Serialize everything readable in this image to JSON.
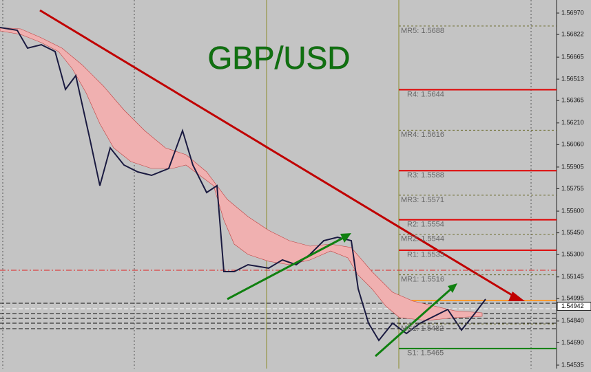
{
  "title": "GBP/USD",
  "price_axis": {
    "range": [
      1.54535,
      1.5697
    ],
    "ticks": [
      {
        "value": 1.5697,
        "label": "1.56970"
      },
      {
        "value": 1.56822,
        "label": "1.56822"
      },
      {
        "value": 1.56665,
        "label": "1.56665"
      },
      {
        "value": 1.56513,
        "label": "1.56513"
      },
      {
        "value": 1.56365,
        "label": "1.56365"
      },
      {
        "value": 1.5621,
        "label": "1.56210"
      },
      {
        "value": 1.5606,
        "label": "1.56060"
      },
      {
        "value": 1.55905,
        "label": "1.55905"
      },
      {
        "value": 1.55755,
        "label": "1.55755"
      },
      {
        "value": 1.556,
        "label": "1.55600"
      },
      {
        "value": 1.5545,
        "label": "1.55450"
      },
      {
        "value": 1.553,
        "label": "1.55300"
      },
      {
        "value": 1.55145,
        "label": "1.55145"
      },
      {
        "value": 1.54995,
        "label": "1.54995"
      },
      {
        "value": 1.5484,
        "label": "1.54840"
      },
      {
        "value": 1.5469,
        "label": "1.54690"
      },
      {
        "value": 1.54535,
        "label": "1.54535"
      }
    ]
  },
  "current_price": {
    "value": 1.54942,
    "label": "1.54942"
  },
  "levels": [
    {
      "label": "MR5: 1.5688",
      "value": 1.5688,
      "kind": "MR"
    },
    {
      "label": "R4: 1.5644",
      "value": 1.5644,
      "kind": "R"
    },
    {
      "label": "MR4: 1.5616",
      "value": 1.5616,
      "kind": "MR"
    },
    {
      "label": "R3: 1.5588",
      "value": 1.5588,
      "kind": "R"
    },
    {
      "label": "MR3: 1.5571",
      "value": 1.5571,
      "kind": "MR"
    },
    {
      "label": "R2: 1.5554",
      "value": 1.5554,
      "kind": "R"
    },
    {
      "label": "MR2: 1.5544",
      "value": 1.5544,
      "kind": "MR"
    },
    {
      "label": "R1: 1.5533",
      "value": 1.5533,
      "kind": "R"
    },
    {
      "label": "MR1: 1.5516",
      "value": 1.5516,
      "kind": "MR"
    },
    {
      "label": "MS1: 1.5482",
      "value": 1.5482,
      "kind": "MS"
    },
    {
      "label": "S1: 1.5465",
      "value": 1.5465,
      "kind": "S"
    }
  ]
}
